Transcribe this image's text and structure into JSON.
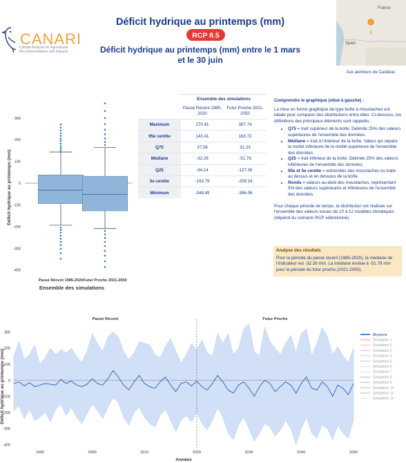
{
  "header": {
    "title": "Déficit hydrique au printemps (mm)",
    "badge": "RCP 8.5",
    "subtitle": "Déficit hydrique au printemps (mm) entre le 1 mars et le 30 juin"
  },
  "logo": {
    "name": "CANARI",
    "tagline": "Climate Analysis for Agricultural Recommendations and Impacts"
  },
  "map": {
    "labels": [
      "France",
      "Spain"
    ],
    "caption": "Aux alentours de Castéras"
  },
  "chart_data": [
    {
      "type": "box",
      "y_label": "Déficit hydrique au printemps (mm)",
      "x_label": "Ensemble des simulations",
      "ylim": [
        -420,
        382
      ],
      "yticks": [
        300,
        200,
        100,
        0,
        -100,
        -200,
        -300,
        -400
      ],
      "reference_line": 0,
      "series": [
        {
          "name": "Passé Récent 1985-2020",
          "color": "#8fb6da",
          "stats": [
            270.41,
            143.41,
            37.58,
            -32.26,
            -94.14,
            -193.79,
            -348.49
          ],
          "outliers": [
            150,
            160,
            170,
            182,
            195,
            205,
            218,
            230,
            243,
            256,
            -205,
            -216,
            -228,
            -242,
            -256,
            -270,
            -285,
            -302,
            -322
          ]
        },
        {
          "name": "Futur Proche 2021-2050",
          "color": "#8fb6da",
          "stats": [
            367.74,
            163.72,
            31.23,
            -51.78,
            -127.09,
            -209.24,
            -386.06
          ],
          "outliers": [
            175,
            190,
            206,
            225,
            246,
            272,
            300,
            332,
            -220,
            -236,
            -252,
            -270,
            -290,
            -312,
            -334,
            -360
          ]
        }
      ]
    },
    {
      "type": "line",
      "y_label": "Déficit hydrique au printemps (mm)",
      "x_label": "Années",
      "periods": [
        {
          "label": "Passé Récent",
          "start": 1985,
          "end": 2020
        },
        {
          "label": "Futur Proche",
          "start": 2020,
          "end": 2050
        }
      ],
      "xlim": [
        1985,
        2050
      ],
      "xticks": [
        1990,
        2000,
        2010,
        2020,
        2030,
        2040,
        2050
      ],
      "ylim": [
        -420,
        345
      ],
      "yticks": [
        300,
        200,
        100,
        0,
        -100,
        -200,
        -300,
        -400
      ],
      "reference_line": 0,
      "x": [
        1985,
        1986,
        1987,
        1988,
        1989,
        1990,
        1991,
        1992,
        1993,
        1994,
        1995,
        1996,
        1997,
        1998,
        1999,
        2000,
        2001,
        2002,
        2003,
        2004,
        2005,
        2006,
        2007,
        2008,
        2009,
        2010,
        2011,
        2012,
        2013,
        2014,
        2015,
        2016,
        2017,
        2018,
        2019,
        2020,
        2021,
        2022,
        2023,
        2024,
        2025,
        2026,
        2027,
        2028,
        2029,
        2030,
        2031,
        2032,
        2033,
        2034,
        2035,
        2036,
        2037,
        2038,
        2039,
        2040,
        2041,
        2042,
        2043,
        2044,
        2045,
        2046,
        2047,
        2048,
        2049,
        2050
      ],
      "band": {
        "color": "#c9dbf6",
        "upper": [
          150,
          240,
          130,
          160,
          220,
          100,
          140,
          200,
          160,
          190,
          170,
          200,
          150,
          110,
          180,
          290,
          230,
          180,
          270,
          300,
          270,
          180,
          130,
          170,
          240,
          230,
          220,
          160,
          140,
          210,
          260,
          180,
          110,
          160,
          230,
          190,
          250,
          170,
          150,
          290,
          230,
          290,
          160,
          200,
          320,
          350,
          180,
          150,
          330,
          240,
          200,
          160,
          230,
          280,
          170,
          290,
          320,
          150,
          230,
          330,
          270,
          160,
          210,
          150,
          110,
          200
        ],
        "lower": [
          -190,
          -160,
          -240,
          -180,
          -250,
          -230,
          -200,
          -260,
          -180,
          -150,
          -220,
          -170,
          -230,
          -270,
          -210,
          -150,
          -190,
          -240,
          -170,
          -110,
          -140,
          -230,
          -280,
          -200,
          -170,
          -230,
          -270,
          -290,
          -220,
          -180,
          -250,
          -320,
          -250,
          -220,
          -260,
          -200,
          -270,
          -310,
          -250,
          -170,
          -230,
          -330,
          -370,
          -280,
          -230,
          -300,
          -380,
          -330,
          -270,
          -290,
          -350,
          -310,
          -250,
          -300,
          -400,
          -300,
          -230,
          -330,
          -360,
          -280,
          -300,
          -370,
          -280,
          -330,
          -360,
          -250
        ]
      },
      "series": [
        {
          "name": "Moyenne",
          "color": "#1f5fbf",
          "visible": true,
          "values": [
            -20,
            -10,
            -35,
            -15,
            -40,
            -30,
            -20,
            -25,
            -30,
            5,
            -20,
            -5,
            -30,
            -40,
            -25,
            10,
            -20,
            -30,
            10,
            60,
            20,
            -30,
            -60,
            -10,
            30,
            -20,
            -40,
            -50,
            -10,
            20,
            -30,
            -70,
            -20,
            -10,
            -35,
            -5,
            -40,
            -60,
            -20,
            30,
            -10,
            -60,
            -80,
            -30,
            -10,
            -50,
            -100,
            -40,
            0,
            -20,
            -70,
            -40,
            -10,
            -30,
            -80,
            -20,
            20,
            -50,
            -60,
            -10,
            -40,
            -100,
            -30,
            -50,
            -90,
            -20
          ]
        },
        {
          "name": "Simulation 1",
          "color": "#d62728",
          "visible": false
        },
        {
          "name": "Simulation 2",
          "color": "#ff7f0e",
          "visible": false
        },
        {
          "name": "Simulation 3",
          "color": "#9467bd",
          "visible": false
        },
        {
          "name": "Simulation 4",
          "color": "#e377c2",
          "visible": false
        },
        {
          "name": "Simulation 5",
          "color": "#17becf",
          "visible": false
        },
        {
          "name": "Simulation 6",
          "color": "#bcbd22",
          "visible": false
        },
        {
          "name": "Simulation 7",
          "color": "#ff9896",
          "visible": false
        },
        {
          "name": "Simulation 8",
          "color": "#8c564b",
          "visible": false
        },
        {
          "name": "Simulation 9",
          "color": "#1f77b4",
          "visible": false
        },
        {
          "name": "Simulation 10",
          "color": "#2ca02c",
          "visible": false
        },
        {
          "name": "Simulation 11",
          "color": "#7f7f7f",
          "visible": false
        },
        {
          "name": "Simulation 12",
          "color": "#aec7e8",
          "visible": false
        }
      ]
    }
  ],
  "table": {
    "title": "Ensemble des simulations",
    "row_labels": [
      "Maximum",
      "95e centile",
      "Q75",
      "Médiane",
      "Q25",
      "5e centile",
      "Minimum"
    ]
  },
  "explanation": {
    "title": "Comprendre le graphique (situé à gauche) :",
    "intro": "La mise en forme graphique de type boîte à moustaches est idéale pour comparer des distributions entre elles. Ci-dessous, les définitions des principaux éléments sont rappelés :",
    "bullets": [
      {
        "term": "Q75",
        "text": " = trait supérieur de la boîte. Délimite 25% des valeurs supérieures de l'ensemble des données."
      },
      {
        "term": "Médiane",
        "text": " = trait à l'intérieur de la boîte. Valeur qui sépare la moitié inférieure de la moitié supérieure de l'ensemble des données."
      },
      {
        "term": "Q25",
        "text": " = trait inférieur de la boîte. Délimite 25% des valeurs inférieures de l'ensemble des données."
      },
      {
        "term": "95e et 5e centile",
        "text": " = extrémités des moustaches ou traits au dessus et en dessous de la boîte."
      },
      {
        "term": "Ronds",
        "text": " = valeurs au-delà des moustaches, représentant 5% des valeurs supérieures et inférieures de l'ensemble des données."
      }
    ],
    "note": "Pour chaque période de temps, la distribution est réalisée sur l'ensemble des valeurs issues de 10 à 12 modèles climatiques (dépend du scénario RCP sélectionné)."
  },
  "analysis": {
    "title": "Analyse des résultats",
    "text": "Pour la période du passé récent (1985-2020), la médiane de l'indicateur est -32.26 mm. La médiane évolue à -51.78 mm pour la période du futur proche (2021-2050)."
  }
}
